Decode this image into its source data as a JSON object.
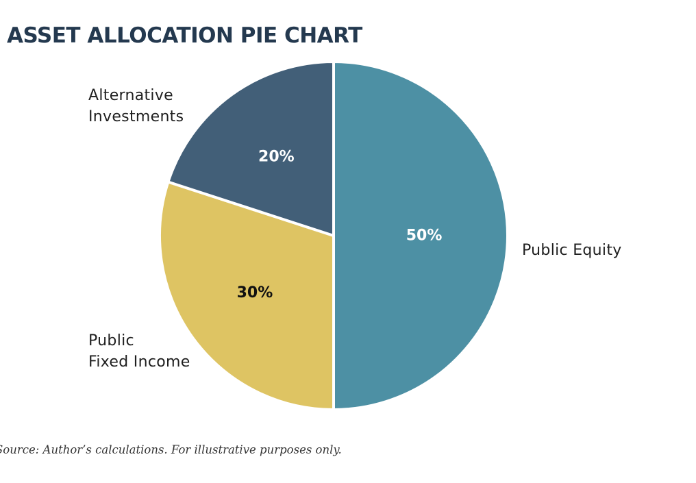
{
  "chart_data": {
    "type": "pie",
    "title": "ASSET ALLOCATION PIE CHART",
    "source": "Source: Author’s calculations. For illustrative purposes only.",
    "slices": [
      {
        "name": "Public Equity",
        "label_lines": [
          "Public Equity"
        ],
        "value": 50,
        "value_label": "50%",
        "color": "#4d90a4",
        "value_text_color": "#ffffff"
      },
      {
        "name": "Public Fixed Income",
        "label_lines": [
          "Public",
          "Fixed Income"
        ],
        "value": 30,
        "value_label": "30%",
        "color": "#dec463",
        "value_text_color": "#111111"
      },
      {
        "name": "Alternative Investments",
        "label_lines": [
          "Alternative",
          "Investments"
        ],
        "value": 20,
        "value_label": "20%",
        "color": "#425f78",
        "value_text_color": "#ffffff"
      }
    ]
  }
}
